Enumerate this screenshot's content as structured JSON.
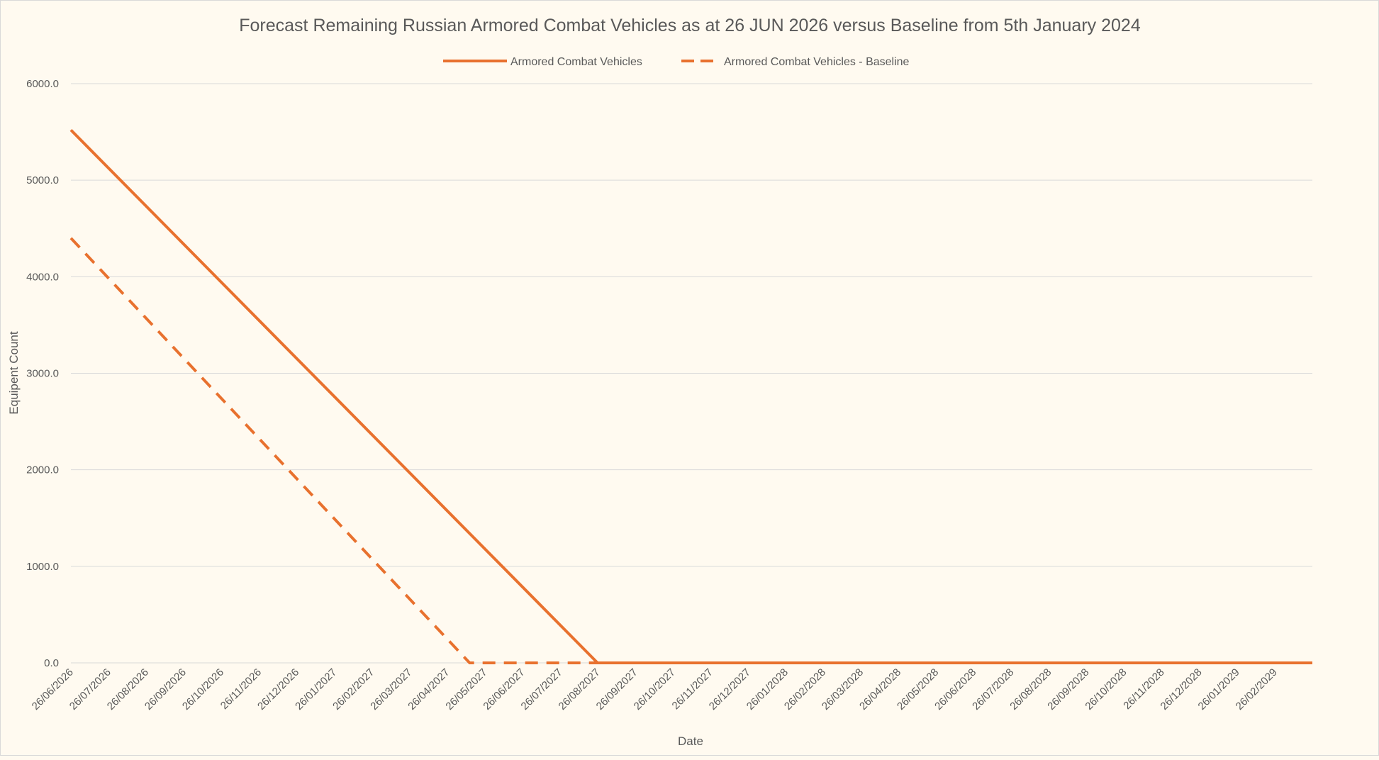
{
  "chart_data": {
    "type": "line",
    "title": "Forecast Remaining Russian Armored Combat Vehicles as at 26 JUN 2026 versus Baseline from 5th January 2024",
    "xlabel": "Date",
    "ylabel": "Equipent Count",
    "ylim": [
      0,
      6000
    ],
    "y_ticks": [
      "0.0",
      "1000.0",
      "2000.0",
      "3000.0",
      "4000.0",
      "5000.0",
      "6000.0"
    ],
    "grid": true,
    "legend_position": "top",
    "categories": [
      "26/06/2026",
      "26/07/2026",
      "26/08/2026",
      "26/09/2026",
      "26/10/2026",
      "26/11/2026",
      "26/12/2026",
      "26/01/2027",
      "26/02/2027",
      "26/03/2027",
      "26/04/2027",
      "26/05/2027",
      "26/06/2027",
      "26/07/2027",
      "26/08/2027",
      "26/09/2027",
      "26/10/2027",
      "26/11/2027",
      "26/12/2027",
      "26/01/2028",
      "26/02/2028",
      "26/03/2028",
      "26/04/2028",
      "26/05/2028",
      "26/06/2028",
      "26/07/2028",
      "26/08/2028",
      "26/09/2028",
      "26/10/2028",
      "26/11/2028",
      "26/12/2028",
      "26/01/2029",
      "26/02/2029"
    ],
    "series": [
      {
        "name": "Armored Combat Vehicles",
        "style": "solid",
        "color": "#e8712e",
        "points": [
          [
            0,
            5520
          ],
          [
            14,
            0
          ],
          [
            33,
            0
          ]
        ]
      },
      {
        "name": "Armored Combat Vehicles - Baseline",
        "style": "dashed",
        "color": "#e8712e",
        "points": [
          [
            0,
            4400
          ],
          [
            10.6,
            0
          ],
          [
            14,
            0
          ]
        ]
      }
    ]
  }
}
